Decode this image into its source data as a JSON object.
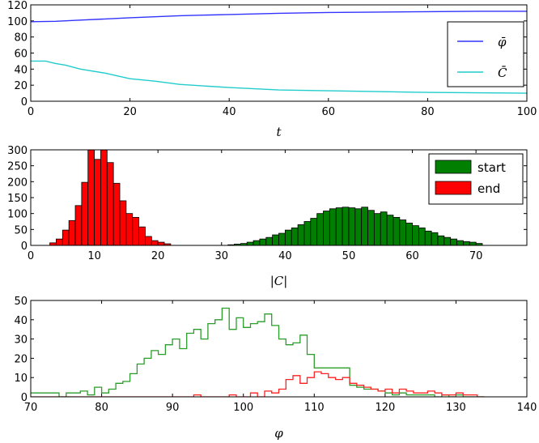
{
  "chart_data": [
    {
      "type": "line",
      "xlabel": "t",
      "xlim": [
        0,
        100
      ],
      "ylim": [
        0,
        120
      ],
      "xticks": [
        0,
        20,
        40,
        60,
        80,
        100
      ],
      "yticks": [
        0,
        20,
        40,
        60,
        80,
        100,
        120
      ],
      "legend_position": "right",
      "series": [
        {
          "name": "φ̄",
          "color": "#3333ff",
          "x": [
            0,
            5,
            10,
            15,
            20,
            30,
            40,
            50,
            60,
            70,
            80,
            90,
            100
          ],
          "y": [
            99,
            99.5,
            101,
            102.5,
            104,
            106.5,
            108,
            109.5,
            110.5,
            111,
            111.5,
            112,
            112
          ]
        },
        {
          "name": "C̄",
          "color": "#22cccc",
          "x": [
            0,
            3,
            5,
            7,
            10,
            15,
            20,
            25,
            30,
            40,
            50,
            60,
            70,
            80,
            90,
            100
          ],
          "y": [
            50,
            50,
            47,
            45,
            40,
            35,
            28,
            25,
            21,
            17,
            14,
            13,
            12,
            11,
            10.5,
            10
          ]
        }
      ]
    },
    {
      "type": "bar",
      "subtype": "histogram",
      "xlabel": "|C|",
      "xlim": [
        0,
        78
      ],
      "ylim": [
        0,
        300
      ],
      "xticks": [
        0,
        10,
        20,
        30,
        40,
        50,
        60,
        70
      ],
      "yticks": [
        0,
        50,
        100,
        150,
        200,
        250,
        300
      ],
      "legend_position": "top-right",
      "series": [
        {
          "name": "start",
          "color": "#007f00",
          "bin_start": 31,
          "bin_width": 1,
          "values": [
            2,
            4,
            6,
            10,
            15,
            20,
            25,
            33,
            38,
            48,
            55,
            65,
            75,
            85,
            100,
            108,
            115,
            118,
            120,
            118,
            115,
            120,
            110,
            100,
            105,
            95,
            88,
            80,
            70,
            62,
            55,
            45,
            40,
            30,
            25,
            20,
            15,
            12,
            10,
            6
          ]
        },
        {
          "name": "end",
          "color": "#ff0000",
          "bin_start": 3,
          "bin_width": 1,
          "values": [
            8,
            20,
            48,
            78,
            125,
            198,
            302,
            270,
            300,
            260,
            195,
            140,
            100,
            88,
            58,
            28,
            15,
            10,
            5
          ]
        }
      ]
    },
    {
      "type": "line",
      "subtype": "step-histogram",
      "xlabel": "φ",
      "xlim": [
        70,
        140
      ],
      "ylim": [
        0,
        50
      ],
      "xticks": [
        70,
        80,
        90,
        100,
        110,
        120,
        130,
        140
      ],
      "yticks": [
        0,
        10,
        20,
        30,
        40,
        50
      ],
      "series": [
        {
          "color": "#2a9d2a",
          "bin_start": 70,
          "bin_width": 1,
          "values": [
            2,
            2,
            2,
            2,
            0,
            2,
            2,
            3,
            1,
            5,
            2,
            4,
            7,
            8,
            12,
            17,
            20,
            24,
            22,
            27,
            30,
            25,
            33,
            35,
            30,
            38,
            40,
            46,
            35,
            41,
            36,
            38,
            39,
            43,
            37,
            30,
            27,
            28,
            32,
            22,
            15,
            15,
            15,
            15,
            15,
            6,
            5,
            4,
            4,
            3,
            2,
            1,
            2,
            1,
            1,
            1,
            1,
            0,
            1,
            0,
            1,
            0,
            0,
            0
          ]
        },
        {
          "color": "#ff2020",
          "bin_start": 70,
          "bin_width": 1,
          "values": [
            0,
            0,
            0,
            0,
            0,
            0,
            0,
            0,
            0,
            0,
            0,
            0,
            0,
            0,
            0,
            0,
            0,
            0,
            0,
            0,
            0,
            0,
            0,
            1,
            0,
            0,
            0,
            0,
            1,
            0,
            0,
            2,
            0,
            3,
            2,
            4,
            9,
            11,
            7,
            10,
            13,
            12,
            10,
            9,
            10,
            7,
            6,
            5,
            4,
            3,
            4,
            2,
            4,
            3,
            2,
            2,
            3,
            2,
            1,
            1,
            2,
            1,
            1,
            0
          ]
        }
      ]
    }
  ]
}
